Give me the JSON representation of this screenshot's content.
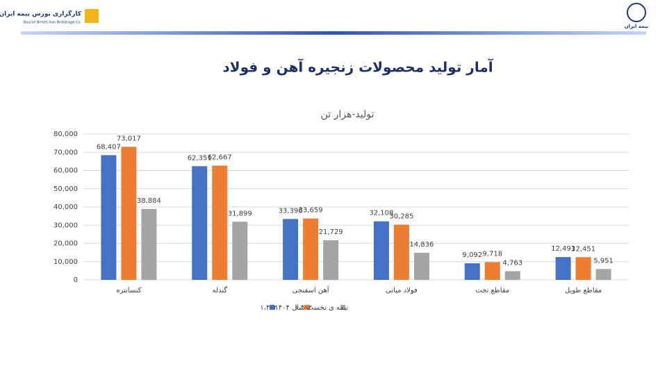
{
  "slide": {
    "logo_text": "کارگزاری بورس بیمه ایران",
    "logo_subtitle": "Bourse Bimeh Iran Brokerage Co.",
    "right_logo_text": "بیمه ایران",
    "title": "آمار تولید محصولات زنجیره آهن و فولاد"
  },
  "chart_data": {
    "type": "bar",
    "title": "تولید-هزار تن",
    "categories": [
      "کنسانتره",
      "گندله",
      "آهن اسفنجی",
      "فولاد میانی",
      "مقاطع تخت",
      "مقاطع طویل"
    ],
    "series": [
      {
        "name": "۱،۴۰۲",
        "color": "#4472c4",
        "values": [
          68407,
          62351,
          33396,
          32108,
          9092,
          12493
        ],
        "value_labels": [
          "68,407",
          "62,351",
          "33,396",
          "32,108",
          "9,092",
          "12,493"
        ]
      },
      {
        "name": "۱،۴۰۳",
        "color": "#ed7d31",
        "values": [
          73017,
          62667,
          33659,
          30285,
          9718,
          12451
        ],
        "value_labels": [
          "73,017",
          "62,667",
          "33,659",
          "30,285",
          "9,718",
          "12,451"
        ]
      },
      {
        "name": "نیمه ی نخست سال ۱۴۰۴",
        "color": "#a5a5a5",
        "values": [
          38884,
          31899,
          21729,
          14836,
          4763,
          5951
        ],
        "value_labels": [
          "38,884",
          "31,899",
          "21,729",
          "14,836",
          "4,763",
          "5,951"
        ]
      }
    ],
    "ylim": [
      0,
      80000
    ],
    "yticks": [
      0,
      {
        "value": 10000,
        "label": "10,000"
      },
      {
        "value": 20000,
        "label": "20,000"
      },
      {
        "value": 30000,
        "label": "30,000"
      },
      {
        "value": 40000,
        "label": "40,000"
      },
      {
        "value": 50000,
        "label": "50,000"
      },
      {
        "value": 60000,
        "label": "60,000"
      },
      {
        "value": 70000,
        "label": "70,000"
      },
      {
        "value": 80000,
        "label": "80,000"
      }
    ],
    "grid": true
  }
}
